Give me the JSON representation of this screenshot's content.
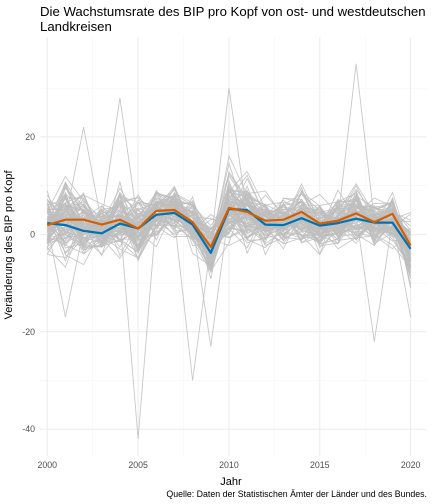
{
  "chart_data": {
    "type": "line",
    "title_lines": [
      "Die Wachstumsrate des BIP pro Kopf von ost- und westdeutschen",
      "Landkreisen"
    ],
    "xlabel": "Jahr",
    "ylabel": "Veränderung des BIP pro Kopf",
    "caption": "Quelle: Daten der Statistischen Ämter der Länder und des Bundes.",
    "xlim": [
      1999.6,
      2020.9
    ],
    "ylim": [
      -45.5,
      40.5
    ],
    "x_ticks": [
      2000,
      2005,
      2010,
      2015,
      2020
    ],
    "y_ticks": [
      -40,
      -20,
      0,
      20
    ],
    "grid": true,
    "legend": "none",
    "x": [
      2000,
      2001,
      2002,
      2003,
      2004,
      2005,
      2006,
      2007,
      2008,
      2009,
      2010,
      2011,
      2012,
      2013,
      2014,
      2015,
      2016,
      2017,
      2018,
      2019,
      2020
    ],
    "colors": {
      "background_lines": "#bebebe",
      "series_blue": "#0072b2",
      "series_orange": "#d55e00"
    },
    "series": [
      {
        "color": "#0072b2",
        "values": [
          2.3,
          1.9,
          0.7,
          0.2,
          2.2,
          1.2,
          4.0,
          4.4,
          2.0,
          -3.8,
          5.2,
          5.0,
          2.0,
          1.9,
          3.3,
          1.8,
          2.3,
          3.2,
          2.4,
          2.4,
          -3.0
        ]
      },
      {
        "color": "#d55e00",
        "values": [
          1.9,
          3.0,
          3.0,
          2.0,
          3.0,
          1.2,
          4.8,
          5.0,
          2.5,
          -2.6,
          5.4,
          4.6,
          2.8,
          3.0,
          4.6,
          2.2,
          2.8,
          4.3,
          2.5,
          4.2,
          -2.3
        ]
      }
    ],
    "background_band": {
      "low": [
        -9,
        -12,
        -12,
        -8,
        -10,
        -13,
        -7,
        -6,
        -8,
        -18,
        -3,
        -5,
        -7,
        -7,
        -6,
        -8,
        -6,
        -7,
        -6,
        -7,
        -16
      ],
      "high": [
        14,
        17,
        12,
        11,
        14,
        10,
        14,
        13,
        10,
        6,
        25,
        20,
        13,
        12,
        14,
        11,
        13,
        15,
        12,
        11,
        9
      ]
    },
    "background_outliers": [
      {
        "values": [
          1,
          3,
          22,
          2,
          2,
          3,
          4,
          3,
          2,
          -2,
          6,
          4,
          3,
          3,
          4,
          2,
          3,
          4,
          3,
          3,
          -1
        ]
      },
      {
        "values": [
          2,
          1,
          2,
          3,
          28,
          2,
          4,
          3,
          2,
          -3,
          5,
          4,
          3,
          3,
          4,
          2,
          3,
          4,
          3,
          2,
          -2
        ]
      },
      {
        "values": [
          3,
          2,
          1,
          2,
          3,
          -42,
          4,
          3,
          2,
          -3,
          5,
          4,
          3,
          2,
          4,
          2,
          3,
          4,
          3,
          3,
          -2
        ]
      },
      {
        "values": [
          2,
          2,
          1,
          2,
          2,
          2,
          4,
          3,
          -30,
          -2,
          5,
          4,
          3,
          2,
          4,
          2,
          3,
          4,
          3,
          3,
          -3
        ]
      },
      {
        "values": [
          2,
          2,
          1,
          2,
          2,
          2,
          4,
          3,
          2,
          -2,
          30,
          4,
          3,
          2,
          4,
          2,
          3,
          4,
          3,
          3,
          -3
        ]
      },
      {
        "values": [
          3,
          2,
          1,
          2,
          2,
          2,
          4,
          3,
          2,
          -3,
          5,
          4,
          3,
          2,
          4,
          2,
          3,
          35,
          3,
          3,
          -2
        ]
      },
      {
        "values": [
          2,
          2,
          1,
          2,
          2,
          2,
          4,
          3,
          2,
          -3,
          5,
          4,
          3,
          2,
          4,
          2,
          3,
          4,
          -22,
          3,
          -2
        ]
      },
      {
        "values": [
          2,
          2,
          1,
          2,
          2,
          2,
          4,
          3,
          2,
          -23,
          5,
          4,
          3,
          2,
          4,
          2,
          3,
          4,
          3,
          3,
          -2
        ]
      },
      {
        "values": [
          2,
          2,
          1,
          2,
          2,
          2,
          4,
          3,
          2,
          -3,
          5,
          4,
          3,
          2,
          4,
          2,
          3,
          4,
          3,
          3,
          -17
        ]
      },
      {
        "values": [
          2,
          -17,
          1,
          2,
          2,
          2,
          4,
          3,
          2,
          -3,
          5,
          4,
          3,
          2,
          4,
          2,
          3,
          4,
          3,
          3,
          -2
        ]
      }
    ]
  }
}
